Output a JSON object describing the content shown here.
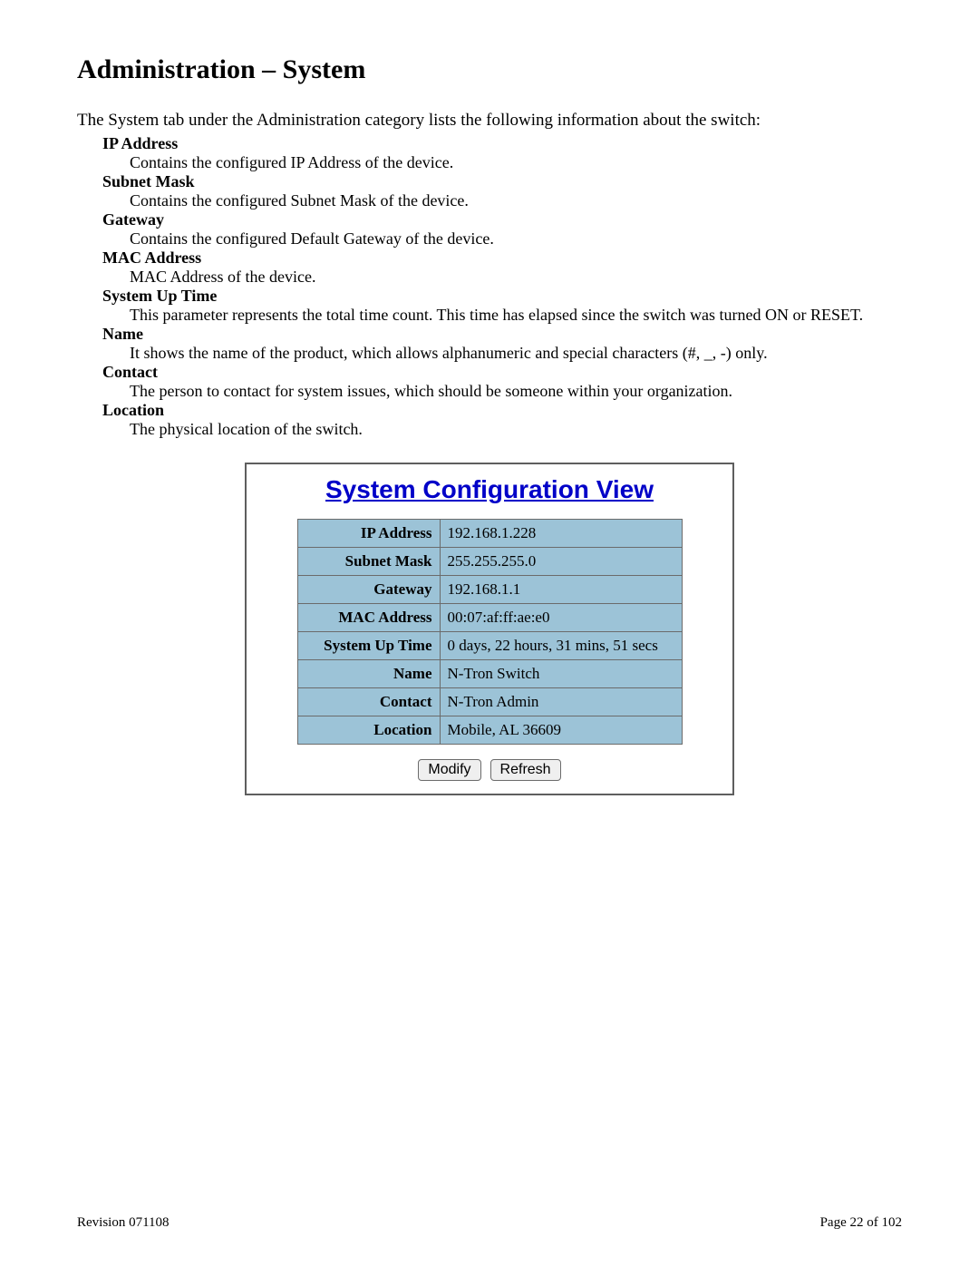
{
  "heading": "Administration – System",
  "intro": "The System tab under the Administration category lists the following information about the switch:",
  "definitions": [
    {
      "term": "IP Address",
      "desc": "Contains the configured IP Address of the device."
    },
    {
      "term": "Subnet Mask",
      "desc": "Contains the configured Subnet Mask of the device."
    },
    {
      "term": "Gateway",
      "desc": "Contains the configured Default Gateway of the device."
    },
    {
      "term": "MAC Address",
      "desc": "MAC Address of the device."
    },
    {
      "term": "System Up Time",
      "desc": "This parameter represents the total time count. This time has elapsed since the switch was turned ON or RESET."
    },
    {
      "term": "Name",
      "desc": "It shows the name of the product, which allows alphanumeric and special characters (#, _, -) only."
    },
    {
      "term": "Contact",
      "desc": "The person to contact for system issues, which should be someone within your organization."
    },
    {
      "term": "Location",
      "desc": "The physical location of the switch."
    }
  ],
  "config_view": {
    "title": "System Configuration View",
    "rows": [
      {
        "label": "IP Address",
        "value": "192.168.1.228"
      },
      {
        "label": "Subnet Mask",
        "value": "255.255.255.0"
      },
      {
        "label": "Gateway",
        "value": "192.168.1.1"
      },
      {
        "label": "MAC Address",
        "value": "00:07:af:ff:ae:e0"
      },
      {
        "label": "System Up Time",
        "value": "0 days, 22 hours, 31 mins, 51 secs"
      },
      {
        "label": "Name",
        "value": "N-Tron Switch"
      },
      {
        "label": "Contact",
        "value": "N-Tron Admin"
      },
      {
        "label": "Location",
        "value": "Mobile, AL 36609"
      }
    ],
    "buttons": {
      "modify": "Modify",
      "refresh": "Refresh"
    },
    "colors": {
      "header_bg": "#9cc3d7",
      "cell_bg": "#9cc3d7",
      "border": "#6b6b6b",
      "title_color": "#0000c8"
    }
  },
  "footer": {
    "revision": "Revision 071108",
    "page": "Page 22 of 102"
  }
}
